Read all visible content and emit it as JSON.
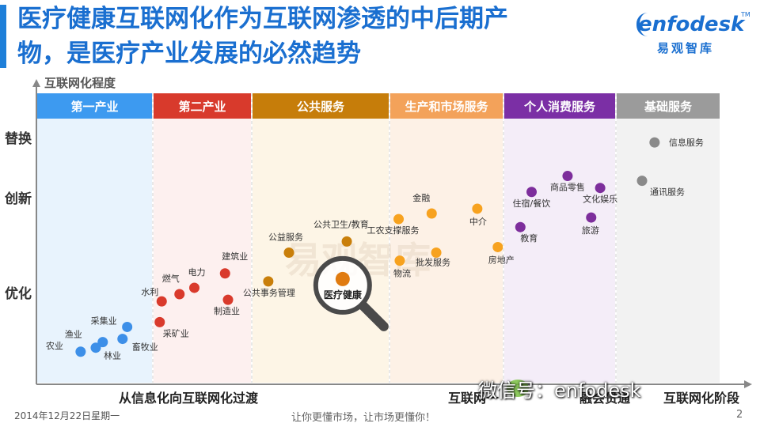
{
  "header": {
    "title_line1": "医疗健康互联网化作为互联网渗透的中后期产",
    "title_line2": "物，是医疗产业发展的必然趋势",
    "logo_word": "enfodesk",
    "logo_sub": "易观智库",
    "logo_tm": "TM"
  },
  "chart_data": {
    "type": "scatter",
    "ylabel": "互联网化程度",
    "yticks": [
      "优化",
      "创新",
      "替换"
    ],
    "xlabels": [
      "从信息化向互联网化过渡",
      "互联网一",
      "融会贯通",
      "互联网化阶段"
    ],
    "bands": [
      {
        "name": "第一产业",
        "header_color": "#3d9af0",
        "bg_color": "#e8f3fd",
        "dot_color": "#3d8fe8"
      },
      {
        "name": "第二产业",
        "header_color": "#d83a2c",
        "bg_color": "#fdf0ef",
        "dot_color": "#d93a2c"
      },
      {
        "name": "公共服务",
        "header_color": "#c67d0a",
        "bg_color": "#fdf5e6",
        "dot_color": "#c97f0a"
      },
      {
        "name": "生产和市场服务",
        "header_color": "#f3a25a",
        "bg_color": "#fdf1e6",
        "dot_color": "#f7a21f"
      },
      {
        "name": "个人消费服务",
        "header_color": "#7b2fa5",
        "bg_color": "#f4edf8",
        "dot_color": "#7d2e9c"
      },
      {
        "name": "基础服务",
        "header_color": "#9b9b9b",
        "bg_color": "#f2f2f2",
        "dot_color": "#8a8a8a"
      }
    ],
    "points": [
      {
        "name": "采集业",
        "band": 0,
        "x": 0.78,
        "y": 0.56
      },
      {
        "name": "渔业",
        "band": 0,
        "x": 0.57,
        "y": 0.37
      },
      {
        "name": "畜牧业",
        "band": 0,
        "x": 0.74,
        "y": 0.41
      },
      {
        "name": "农业",
        "band": 0,
        "x": 0.38,
        "y": 0.25
      },
      {
        "name": "林业",
        "band": 0,
        "x": 0.51,
        "y": 0.3
      },
      {
        "name": "建筑业",
        "band": 1,
        "x": 0.73,
        "y": 1.23
      },
      {
        "name": "电力",
        "band": 1,
        "x": 0.42,
        "y": 1.05
      },
      {
        "name": "燃气",
        "band": 1,
        "x": 0.27,
        "y": 0.97
      },
      {
        "name": "水利",
        "band": 1,
        "x": 0.09,
        "y": 0.88
      },
      {
        "name": "制造业",
        "band": 1,
        "x": 0.76,
        "y": 0.9
      },
      {
        "name": "采矿业",
        "band": 1,
        "x": 0.07,
        "y": 0.62
      },
      {
        "name": "公益服务",
        "band": 2,
        "x": 0.27,
        "y": 1.49
      },
      {
        "name": "公共卫生/教育",
        "band": 2,
        "x": 0.69,
        "y": 1.63
      },
      {
        "name": "公共事务管理",
        "band": 2,
        "x": 0.12,
        "y": 1.13
      },
      {
        "name": "金融",
        "band": 3,
        "x": 0.37,
        "y": 1.98
      },
      {
        "name": "中介",
        "band": 3,
        "x": 0.77,
        "y": 2.04
      },
      {
        "name": "工农支撑服务",
        "band": 3,
        "x": 0.08,
        "y": 1.91
      },
      {
        "name": "批发服务",
        "band": 3,
        "x": 0.41,
        "y": 1.49
      },
      {
        "name": "物流",
        "band": 3,
        "x": 0.09,
        "y": 1.39
      },
      {
        "name": "房地产",
        "band": 3,
        "x": 0.95,
        "y": 1.56
      },
      {
        "name": "商品零售",
        "band": 4,
        "x": 0.57,
        "y": 2.45
      },
      {
        "name": "文化娱乐",
        "band": 4,
        "x": 0.86,
        "y": 2.3
      },
      {
        "name": "住宿/餐饮",
        "band": 4,
        "x": 0.25,
        "y": 2.25
      },
      {
        "name": "教育",
        "band": 4,
        "x": 0.15,
        "y": 1.81
      },
      {
        "name": "旅游",
        "band": 4,
        "x": 0.78,
        "y": 1.93
      },
      {
        "name": "信息服务",
        "band": 5,
        "x": 0.37,
        "y": 2.87
      },
      {
        "name": "通讯服务",
        "band": 5,
        "x": 0.25,
        "y": 2.39
      }
    ],
    "highlight": {
      "name": "医疗健康",
      "band": 2,
      "x": 0.66,
      "y": 1.08,
      "color": "#e07b10"
    },
    "watermark": "易观智库",
    "grid": false,
    "legend": "none"
  },
  "footer": {
    "date": "2014年12月22日星期一",
    "slogan": "让你更懂市场，让市场更懂你！",
    "page": "2",
    "wechat": "微信号：enfodesk"
  }
}
